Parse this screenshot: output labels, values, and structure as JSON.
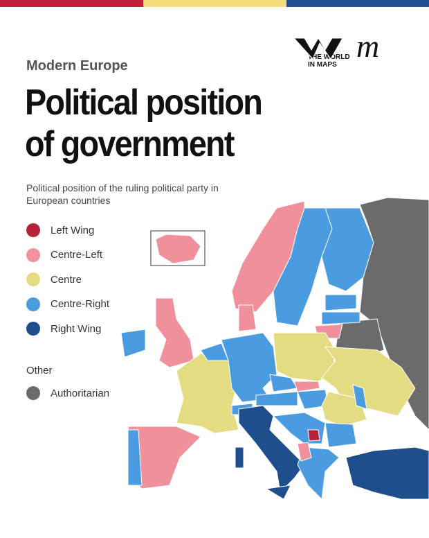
{
  "header": {
    "kicker": "Modern Europe",
    "title": "Political position of government",
    "subtitle": "Political position of the ruling political party in European countries"
  },
  "logo": {
    "text": "THE WORLD IN MAPS",
    "mark": "m"
  },
  "legend": {
    "items": [
      {
        "label": "Left Wing",
        "color": "#b5233a"
      },
      {
        "label": "Centre-Left",
        "color": "#f0909a"
      },
      {
        "label": "Centre",
        "color": "#e3dc82"
      },
      {
        "label": "Centre-Right",
        "color": "#4a9be0"
      },
      {
        "label": "Right Wing",
        "color": "#1f4e8c"
      }
    ],
    "other_heading": "Other",
    "other": [
      {
        "label": "Authoritarian",
        "color": "#6b6b6b"
      }
    ]
  }
}
